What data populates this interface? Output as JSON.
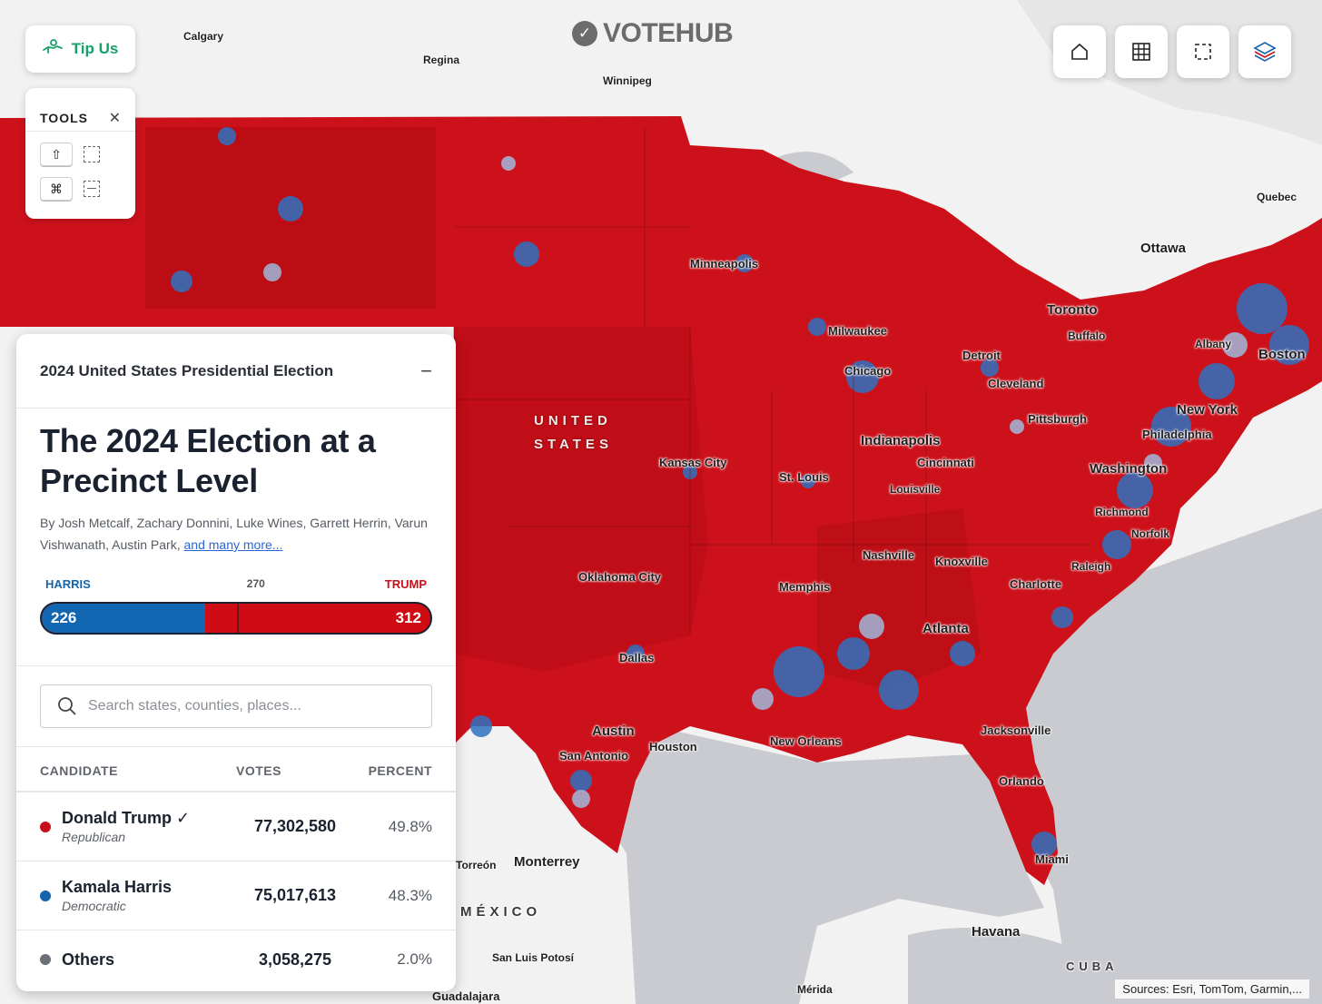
{
  "logo": {
    "text": "VOTEHUB"
  },
  "tip": {
    "label": "Tip Us"
  },
  "tools": {
    "title": "TOOLS",
    "close": "✕",
    "shift_key": "⇧",
    "cmd_key": "⌘"
  },
  "map": {
    "places": [
      {
        "name": "Calgary"
      },
      {
        "name": "Regina"
      },
      {
        "name": "Winnipeg"
      },
      {
        "name": "Quebec"
      },
      {
        "name": "Ottawa"
      },
      {
        "name": "Toronto"
      },
      {
        "name": "Buffalo"
      },
      {
        "name": "Albany"
      },
      {
        "name": "Boston"
      },
      {
        "name": "Minneapolis"
      },
      {
        "name": "Milwaukee"
      },
      {
        "name": "Detroit"
      },
      {
        "name": "Chicago"
      },
      {
        "name": "Cleveland"
      },
      {
        "name": "New York"
      },
      {
        "name": "Pittsburgh"
      },
      {
        "name": "Philadelphia"
      },
      {
        "name": "Indianapolis"
      },
      {
        "name": "Cincinnati"
      },
      {
        "name": "Washington"
      },
      {
        "name": "Kansas City"
      },
      {
        "name": "St. Louis"
      },
      {
        "name": "Louisville"
      },
      {
        "name": "Richmond"
      },
      {
        "name": "Norfolk"
      },
      {
        "name": "Nashville"
      },
      {
        "name": "Knoxville"
      },
      {
        "name": "Raleigh"
      },
      {
        "name": "Oklahoma City"
      },
      {
        "name": "Memphis"
      },
      {
        "name": "Charlotte"
      },
      {
        "name": "Atlanta"
      },
      {
        "name": "Dallas"
      },
      {
        "name": "Austin"
      },
      {
        "name": "Houston"
      },
      {
        "name": "New Orleans"
      },
      {
        "name": "Jacksonville"
      },
      {
        "name": "San Antonio"
      },
      {
        "name": "Orlando"
      },
      {
        "name": "Miami"
      },
      {
        "name": "Monterrey"
      },
      {
        "name": "Torreón"
      },
      {
        "name": "San Luis Potosí"
      },
      {
        "name": "Havana"
      },
      {
        "name": "Mérida"
      },
      {
        "name": "Guadalajara"
      },
      {
        "name": "CUBA"
      },
      {
        "name": "MÉXICO"
      },
      {
        "name": "UNITED"
      },
      {
        "name": "STATES"
      }
    ],
    "attribution": "Sources: Esri, TomTom, Garmin,..."
  },
  "panel": {
    "header": "2024 United States Presidential Election",
    "minimize": "−",
    "headline": "The 2024 Election at a Precinct Level",
    "byline": "By Josh Metcalf, Zachary Donnini, Luke Wines, Garrett Herrin, Varun Vishwanath, Austin Park,",
    "byline_link": "and many more...",
    "ev": {
      "left_label": "HARRIS",
      "mid_label": "270",
      "right_label": "TRUMP",
      "harris": 226,
      "trump": 312,
      "harris_display": "226",
      "trump_display": "312",
      "total": 538
    },
    "search_placeholder": "Search states, counties, places...",
    "table": {
      "headers": {
        "candidate": "CANDIDATE",
        "votes": "VOTES",
        "percent": "PERCENT"
      },
      "rows": [
        {
          "name": "Donald Trump ✓",
          "party": "Republican",
          "votes": "77,302,580",
          "percent": "49.8%",
          "color": "#c9101a"
        },
        {
          "name": "Kamala Harris",
          "party": "Democratic",
          "votes": "75,017,613",
          "percent": "48.3%",
          "color": "#1463ad"
        },
        {
          "name": "Others",
          "party": "",
          "votes": "3,058,275",
          "percent": "2.0%",
          "color": "#6b6f77"
        }
      ]
    }
  },
  "colors": {
    "republican": "#c9101a",
    "democrat": "#1463ad",
    "accent_green": "#16a06a"
  }
}
